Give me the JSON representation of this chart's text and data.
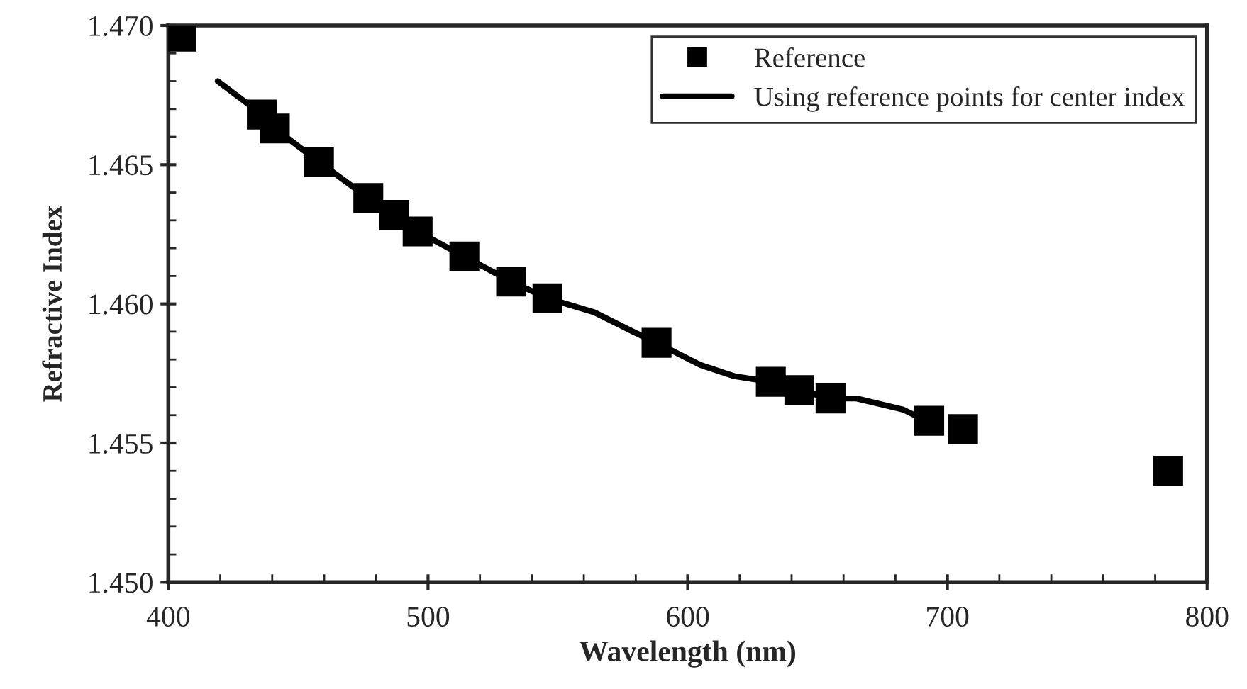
{
  "chart_data": {
    "type": "scatter",
    "xlabel": "Wavelength (nm)",
    "ylabel": "Refractive Index",
    "xlim": [
      400,
      800
    ],
    "ylim": [
      1.45,
      1.47
    ],
    "xticks": [
      400,
      500,
      600,
      700,
      800
    ],
    "yticks": [
      {
        "value": 1.45,
        "label": "1.450"
      },
      {
        "value": 1.455,
        "label": "1.455"
      },
      {
        "value": 1.46,
        "label": "1.460"
      },
      {
        "value": 1.465,
        "label": "1.465"
      },
      {
        "value": 1.47,
        "label": "1.470"
      }
    ],
    "grid": false,
    "legend": "top right",
    "series": [
      {
        "name": "Reference",
        "marker": "square",
        "color": "#000000",
        "x": [
          405,
          436,
          441,
          458,
          477,
          487,
          496,
          514,
          532,
          546,
          588,
          632,
          643,
          655,
          693,
          706,
          785
        ],
        "values": [
          1.4696,
          1.4668,
          1.4663,
          1.4651,
          1.4638,
          1.4632,
          1.4626,
          1.4617,
          1.4608,
          1.4602,
          1.4586,
          1.4572,
          1.4569,
          1.4566,
          1.4558,
          1.4555,
          1.454
        ]
      },
      {
        "name": "Using reference points for center index",
        "type": "line",
        "marker": "none",
        "line_style": "solid",
        "color": "#000000",
        "x": [
          419,
          429,
          436,
          441,
          458,
          477,
          487,
          496,
          514,
          532,
          546,
          564,
          579,
          588,
          605,
          618,
          632,
          643,
          655,
          665,
          683,
          694
        ],
        "values": [
          1.468,
          1.4673,
          1.4668,
          1.4663,
          1.4651,
          1.4638,
          1.4632,
          1.4626,
          1.4617,
          1.4608,
          1.4602,
          1.4597,
          1.459,
          1.4586,
          1.4578,
          1.4574,
          1.4572,
          1.4569,
          1.4566,
          1.4566,
          1.4562,
          1.4557
        ]
      }
    ]
  }
}
